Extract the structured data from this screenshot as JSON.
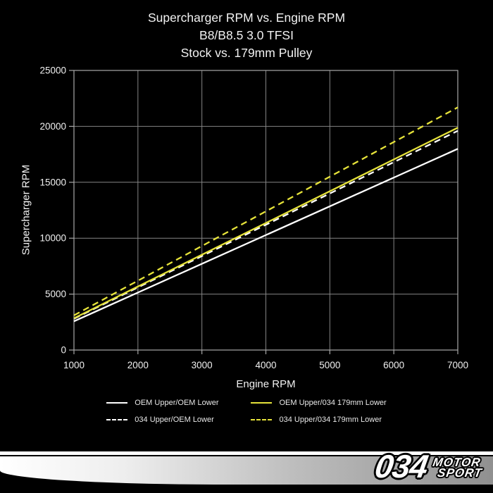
{
  "title": {
    "line1": "Supercharger RPM vs. Engine RPM",
    "line2": "B8/B8.5 3.0 TFSI",
    "line3": "Stock vs. 179mm Pulley"
  },
  "chart_data": {
    "type": "line",
    "x": [
      1000,
      2000,
      3000,
      4000,
      5000,
      6000,
      7000
    ],
    "series": [
      {
        "name": "OEM Upper/OEM Lower",
        "color": "#ffffff",
        "dash": false,
        "values": [
          2570,
          5140,
          7710,
          10280,
          12850,
          15420,
          17990
        ]
      },
      {
        "name": "034 Upper/OEM Lower",
        "color": "#ffffff",
        "dash": true,
        "values": [
          2800,
          5600,
          8400,
          11200,
          14000,
          16800,
          19600
        ]
      },
      {
        "name": "OEM Upper/034 179mm Lower",
        "color": "#e6e33a",
        "dash": false,
        "values": [
          2840,
          5680,
          8520,
          11360,
          14200,
          17040,
          19880
        ]
      },
      {
        "name": "034 Upper/034 179mm Lower",
        "color": "#e6e33a",
        "dash": true,
        "values": [
          3100,
          6200,
          9300,
          12400,
          15500,
          18600,
          21700
        ]
      }
    ],
    "title": "Supercharger RPM vs. Engine RPM — B8/B8.5 3.0 TFSI — Stock vs. 179mm Pulley",
    "xlabel": "Engine RPM",
    "ylabel": "Supercharger RPM",
    "xlim": [
      1000,
      7000
    ],
    "ylim": [
      0,
      25000
    ],
    "x_ticks": [
      1000,
      2000,
      3000,
      4000,
      5000,
      6000,
      7000
    ],
    "y_ticks": [
      0,
      5000,
      10000,
      15000,
      20000,
      25000
    ],
    "grid": true,
    "legend_position": "bottom"
  },
  "colors": {
    "background": "#000000",
    "text": "#f2f2f2",
    "grid": "#858585",
    "axis": "#a8a8a8",
    "series_white": "#ffffff",
    "series_yellow": "#e6e33a"
  },
  "footer": {
    "logo_number": "034",
    "logo_word1": "MOTOR",
    "logo_word2": "SPORT"
  }
}
